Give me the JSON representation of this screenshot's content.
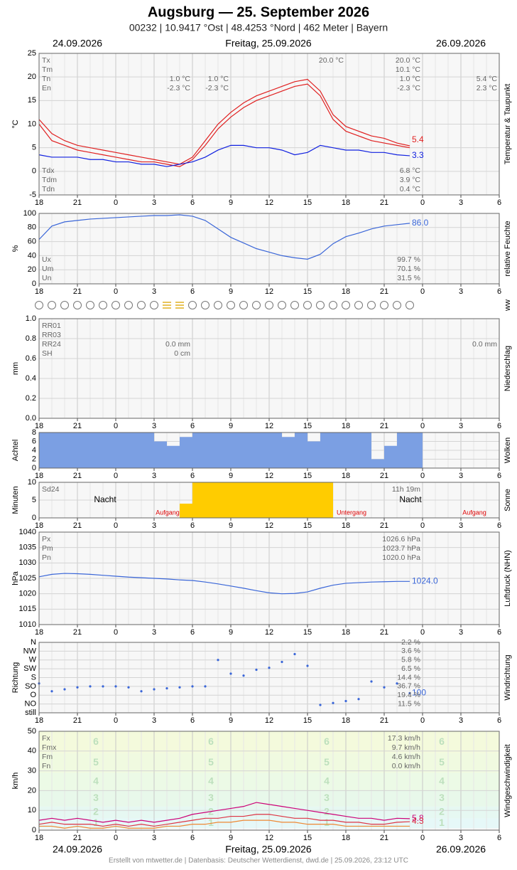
{
  "chart_data": {
    "type": "meteogram",
    "title": "Augsburg  —  25. September 2026",
    "subtitle": "00232  |  10.9417 °Ost  |  48.4253 °Nord  |  462 Meter  |  Bayern",
    "dates": [
      "24.09.2026",
      "Freitag, 25.09.2026",
      "26.09.2026"
    ],
    "footer": "Erstellt von mtwetter.de | Datenbasis: Deutscher Wetterdienst, dwd.de | 25.09.2026, 23:12 UTC",
    "ww_label": "ww",
    "x": [
      0,
      1,
      2,
      3,
      4,
      5,
      6,
      7,
      8,
      9,
      10,
      11,
      12,
      13,
      14,
      15,
      16,
      17,
      18,
      19,
      20,
      21,
      22,
      23,
      24,
      25,
      26,
      27,
      28,
      29
    ],
    "xlim": [
      0,
      36
    ],
    "xticks": [
      {
        "value": 0,
        "label": "18"
      },
      {
        "value": 3,
        "label": "21"
      },
      {
        "value": 6,
        "label": "0"
      },
      {
        "value": 9,
        "label": "3"
      },
      {
        "value": 12,
        "label": "6"
      },
      {
        "value": 15,
        "label": "9"
      },
      {
        "value": 18,
        "label": "12"
      },
      {
        "value": 21,
        "label": "15"
      },
      {
        "value": 24,
        "label": "18"
      },
      {
        "value": 27,
        "label": "21"
      },
      {
        "value": 30,
        "label": "0"
      },
      {
        "value": 33,
        "label": "3"
      },
      {
        "value": 36,
        "label": "6"
      }
    ],
    "panels": [
      {
        "type": "line",
        "ylabel": "°C",
        "side_label": "Temperatur & Taupunkt",
        "ylim": [
          -5,
          25
        ],
        "yticks": [
          -5,
          0,
          5,
          10,
          15,
          20,
          25
        ],
        "grid": true,
        "series": [
          {
            "color": "#e02020",
            "label_last": true,
            "values": [
              11,
              8,
              6.5,
              5.5,
              5,
              4.5,
              4,
              3.5,
              3,
              2.5,
              2,
              1.5,
              3,
              6.5,
              10,
              12.5,
              14.5,
              16,
              17,
              18,
              19,
              19.5,
              17,
              12,
              9.5,
              8.5,
              7.5,
              7,
              6,
              5.4
            ]
          },
          {
            "color": "#e02020",
            "values": [
              10,
              6.5,
              5.5,
              4.5,
              4,
              3.5,
              3,
              2.5,
              2,
              2,
              1.5,
              1,
              2.5,
              5.5,
              9,
              11.5,
              13.5,
              15,
              16,
              17,
              18,
              18.5,
              16,
              11,
              8.5,
              7.5,
              6.5,
              6,
              5.5,
              5
            ]
          },
          {
            "color": "#1020e0",
            "label_last": true,
            "values": [
              3.5,
              3,
              3,
              3,
              2.5,
              2.5,
              2,
              2,
              1.5,
              1.5,
              1,
              1.5,
              2,
              3,
              4.5,
              5.5,
              5.5,
              5,
              5,
              4.5,
              3.5,
              4,
              5.5,
              5,
              4.5,
              4.5,
              4,
              4,
              3.5,
              3.3
            ]
          }
        ],
        "stats": [
          [
            "Tx",
            null,
            null,
            "20.0 °C",
            "20.0 °C",
            null
          ],
          [
            "Tm",
            null,
            null,
            null,
            "10.1 °C",
            null
          ],
          [
            "Tn",
            "1.0 °C",
            "1.0 °C",
            null,
            "1.0 °C",
            "5.4 °C"
          ],
          [
            "En",
            "-2.3 °C",
            "-2.3 °C",
            null,
            "-2.3 °C",
            "2.3 °C"
          ]
        ],
        "stats_bottom": [
          [
            "Tdx",
            null,
            null,
            null,
            "6.8 °C",
            null
          ],
          [
            "Tdm",
            null,
            null,
            null,
            "3.9 °C",
            null
          ],
          [
            "Tdn",
            null,
            null,
            null,
            "0.4 °C",
            null
          ]
        ]
      },
      {
        "type": "line",
        "ylabel": "%",
        "side_label": "relative Feuchte",
        "ylim": [
          0,
          100
        ],
        "yticks": [
          0,
          20,
          40,
          60,
          80,
          100
        ],
        "grid": true,
        "series": [
          {
            "color": "#3a66d8",
            "values": [
              63,
              82,
              88,
              90,
              92,
              93,
              94,
              95,
              96,
              97,
              97,
              98,
              96,
              90,
              78,
              66,
              58,
              50,
              45,
              40,
              37,
              35,
              42,
              57,
              67,
              72,
              78,
              82,
              84,
              86
            ],
            "value_labels": [
              null,
              null,
              null,
              null,
              null,
              null,
              null,
              null,
              null,
              null,
              null,
              null,
              null,
              null,
              null,
              null,
              null,
              null,
              null,
              null,
              null,
              null,
              null,
              null,
              null,
              null,
              null,
              null,
              null,
              "86.0"
            ]
          }
        ],
        "stats_bottom": [
          [
            "Ux",
            null,
            null,
            null,
            "99.7 %",
            null
          ],
          [
            "Um",
            null,
            null,
            null,
            "70.1 %",
            null
          ],
          [
            "Un",
            null,
            null,
            null,
            "31.5 %",
            null
          ]
        ]
      },
      {
        "type": "bar",
        "ylabel": "mm",
        "side_label": "Niederschlag",
        "ylim": [
          0,
          1
        ],
        "yticks": [
          {
            "value": 0,
            "label": "0.0"
          },
          0.2,
          0.4,
          0.6,
          0.8,
          {
            "value": 1,
            "label": "1.0"
          }
        ],
        "grid": true,
        "series": [],
        "stats": [
          [
            "RR01",
            null,
            null,
            null,
            null,
            null
          ],
          [
            "RR03",
            null,
            null,
            null,
            null,
            null
          ],
          [
            "RR24",
            "0.0 mm",
            null,
            null,
            null,
            "0.0 mm"
          ],
          [
            "SH",
            "0 cm",
            null,
            null,
            null,
            null
          ]
        ]
      },
      {
        "type": "bar",
        "ylabel": "Achtel",
        "side_label": "Wolken",
        "ylim": [
          0,
          8
        ],
        "yticks": [
          0,
          2,
          4,
          6,
          8
        ],
        "grid": true,
        "series": [
          {
            "color": "#7b9fe3",
            "values": [
              8,
              8,
              8,
              8,
              8,
              8,
              8,
              8,
              8,
              6,
              5,
              7,
              8,
              8,
              8,
              8,
              8,
              8,
              8,
              7,
              8,
              6,
              8,
              8,
              8,
              8,
              2,
              5,
              8,
              8
            ]
          }
        ]
      },
      {
        "type": "bar",
        "ylabel": "Minuten",
        "side_label": "Sonne",
        "ylim": [
          0,
          10
        ],
        "yticks": [
          0,
          5,
          10
        ],
        "grid": true,
        "series": [
          {
            "color": "#ffcc00",
            "values": [
              0,
              0,
              0,
              0,
              0,
              0,
              0,
              0,
              0,
              0,
              0,
              4,
              10,
              10,
              10,
              10,
              10,
              10,
              10,
              10,
              10,
              10,
              10,
              0,
              0,
              0,
              0,
              0,
              0,
              0
            ]
          }
        ],
        "stats": [
          [
            "Sd24",
            null,
            null,
            null,
            "11h 19m",
            null
          ]
        ],
        "annotations": [
          "Nacht",
          "Nacht",
          "Aufgang",
          "Untergang",
          "Aufgang"
        ]
      },
      {
        "type": "line",
        "ylabel": "hPa",
        "side_label": "Luftdruck (NHN)",
        "ylim": [
          1010,
          1040
        ],
        "yticks": [
          1010,
          1015,
          1020,
          1025,
          1030,
          1035,
          1040
        ],
        "grid": true,
        "series": [
          {
            "color": "#3a66d8",
            "values": [
              1025.5,
              1026.3,
              1026.6,
              1026.5,
              1026.3,
              1026,
              1025.7,
              1025.4,
              1025.2,
              1025,
              1024.8,
              1024.5,
              1024.3,
              1023.8,
              1023.2,
              1022.5,
              1021.8,
              1021,
              1020.3,
              1020,
              1020.1,
              1020.6,
              1021.8,
              1022.8,
              1023.4,
              1023.6,
              1023.8,
              1023.9,
              1024,
              1024
            ],
            "value_labels": [
              null,
              null,
              null,
              null,
              null,
              null,
              null,
              null,
              null,
              null,
              null,
              null,
              null,
              null,
              null,
              null,
              null,
              null,
              null,
              null,
              null,
              null,
              null,
              null,
              null,
              null,
              null,
              null,
              null,
              "1024.0"
            ]
          }
        ],
        "stats": [
          [
            "Px",
            null,
            null,
            null,
            "1026.6 hPa",
            null
          ],
          [
            "Pm",
            null,
            null,
            null,
            "1023.7 hPa",
            null
          ],
          [
            "Pn",
            null,
            null,
            null,
            "1020.0 hPa",
            null
          ]
        ]
      },
      {
        "type": "scatter",
        "ylabel": "Richtung",
        "side_label": "Windrichtung",
        "ylim": [
          0,
          360
        ],
        "yticks": [
          {
            "value": 0,
            "label": "still"
          },
          {
            "value": 45,
            "label": "NO"
          },
          {
            "value": 90,
            "label": "O"
          },
          {
            "value": 135,
            "label": "SO"
          },
          {
            "value": 180,
            "label": "S"
          },
          {
            "value": 225,
            "label": "SW"
          },
          {
            "value": 270,
            "label": "W"
          },
          {
            "value": 315,
            "label": "NW"
          },
          {
            "value": 360,
            "label": "N"
          }
        ],
        "grid": true,
        "series": [
          {
            "color": "#3a66d8",
            "label_last": true,
            "values": [
              150,
              110,
              120,
              130,
              135,
              135,
              135,
              130,
              110,
              120,
              125,
              130,
              135,
              135,
              270,
              200,
              190,
              220,
              230,
              260,
              300,
              240,
              40,
              50,
              60,
              70,
              160,
              130,
              150,
              100
            ]
          }
        ],
        "stats": [
          [
            null,
            null,
            null,
            null,
            "2.2 %",
            null
          ],
          [
            null,
            null,
            null,
            null,
            "3.6 %",
            null
          ],
          [
            null,
            null,
            null,
            null,
            "5.8 %",
            null
          ],
          [
            null,
            null,
            null,
            null,
            "6.5 %",
            null
          ],
          [
            null,
            null,
            null,
            null,
            "14.4 %",
            null
          ],
          [
            null,
            null,
            null,
            null,
            "36.7 %",
            null
          ],
          [
            null,
            null,
            null,
            null,
            "19.4 %",
            null
          ],
          [
            null,
            null,
            null,
            null,
            "11.5 %",
            null
          ]
        ]
      },
      {
        "type": "line",
        "ylabel": "km/h",
        "side_label": "Windgeschwindigkeit",
        "ylim": [
          0,
          50
        ],
        "yticks": [
          0,
          10,
          20,
          30,
          40,
          50
        ],
        "grid": true,
        "bands": [
          {
            "label": "1",
            "range": [
              1,
              6
            ],
            "color": "#e6f8f8"
          },
          {
            "label": "2",
            "range": [
              6,
              12
            ],
            "color": "#e6f8f2"
          },
          {
            "label": "3",
            "range": [
              12,
              20
            ],
            "color": "#e8f8ea"
          },
          {
            "label": "4",
            "range": [
              20,
              29
            ],
            "color": "#ecfae6"
          },
          {
            "label": "5",
            "range": [
              29,
              39
            ],
            "color": "#f0fae0"
          },
          {
            "label": "6",
            "range": [
              39,
              50
            ],
            "color": "#f4fadc"
          }
        ],
        "series": [
          {
            "color": "#cc0077",
            "label_last": true,
            "values": [
              5,
              6,
              5,
              6,
              5,
              4,
              5,
              4,
              5,
              4,
              5,
              6,
              8,
              9,
              10,
              11,
              12,
              14,
              13,
              12,
              11,
              10,
              9,
              8,
              7,
              6,
              6,
              5,
              6,
              5.8
            ]
          },
          {
            "color": "#dd3344",
            "label_last": true,
            "values": [
              3,
              4,
              3,
              3,
              3,
              2,
              3,
              2,
              3,
              2,
              3,
              4,
              5,
              6,
              6,
              7,
              7,
              8,
              8,
              7,
              6,
              6,
              5,
              5,
              4,
              4,
              3,
              3,
              4,
              4.3
            ]
          },
          {
            "color": "#ee8833",
            "values": [
              2,
              2,
              1,
              2,
              1,
              1,
              2,
              1,
              1,
              1,
              2,
              2,
              3,
              3,
              4,
              4,
              5,
              5,
              5,
              4,
              4,
              3,
              3,
              3,
              2,
              2,
              2,
              2,
              2,
              2
            ]
          }
        ],
        "stats": [
          [
            "Fx",
            null,
            null,
            null,
            "17.3 km/h",
            null
          ],
          [
            "Fmx",
            null,
            null,
            null,
            "9.7 km/h",
            null
          ],
          [
            "Fm",
            null,
            null,
            null,
            "4.6 km/h",
            null
          ],
          [
            "Fn",
            null,
            null,
            null,
            "0.0 km/h",
            null
          ]
        ]
      }
    ]
  }
}
